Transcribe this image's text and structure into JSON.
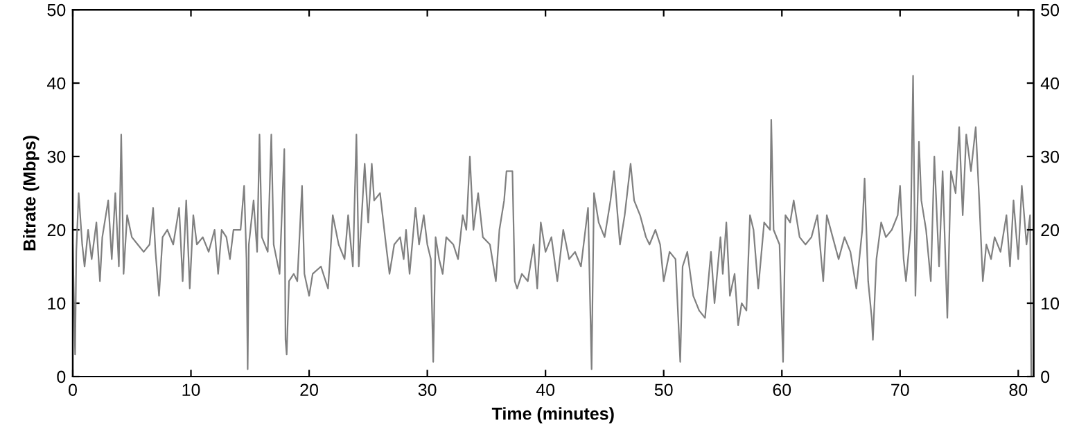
{
  "chart_data": {
    "type": "line",
    "xlabel": "Time (minutes)",
    "ylabel": "Bitrate (Mbps)",
    "xlim": [
      0,
      81.3
    ],
    "xticks": [
      0,
      10,
      20,
      30,
      40,
      50,
      60,
      70,
      80
    ],
    "ylim": [
      0,
      50
    ],
    "yticks": [
      0,
      10,
      20,
      30,
      40,
      50
    ],
    "y2lim": [
      0,
      50
    ],
    "y2ticks": [
      0,
      10,
      20,
      30,
      40,
      50
    ],
    "marker": "none",
    "line_style": "solid",
    "series": [
      {
        "color": "#808080",
        "x": [
          0,
          0.2,
          0.3,
          0.5,
          0.8,
          1,
          1.3,
          1.6,
          2,
          2.3,
          2.5,
          3,
          3.3,
          3.6,
          3.9,
          4.1,
          4.3,
          4.6,
          5,
          5.5,
          6,
          6.5,
          6.8,
          7,
          7.3,
          7.6,
          8,
          8.5,
          9,
          9.3,
          9.6,
          9.9,
          10.2,
          10.5,
          11,
          11.5,
          12,
          12.3,
          12.6,
          13,
          13.3,
          13.6,
          14.2,
          14.5,
          14.7,
          14.8,
          14.9,
          15.3,
          15.6,
          15.8,
          16,
          16.5,
          16.8,
          17,
          17.5,
          17.9,
          18,
          18.1,
          18.3,
          18.7,
          19,
          19.4,
          19.6,
          20,
          20.3,
          21,
          21.6,
          22,
          22.5,
          23,
          23.3,
          23.7,
          24,
          24.2,
          24.7,
          25,
          25.3,
          25.5,
          26,
          26.5,
          26.8,
          27.2,
          27.7,
          28,
          28.2,
          28.5,
          29,
          29.3,
          29.7,
          30,
          30.3,
          30.5,
          30.7,
          31,
          31.3,
          31.6,
          32.2,
          32.6,
          33,
          33.3,
          33.6,
          33.9,
          34.3,
          34.7,
          35.3,
          35.8,
          36.1,
          36.5,
          36.7,
          37.2,
          37.4,
          37.6,
          38,
          38.5,
          39,
          39.3,
          39.6,
          40,
          40.5,
          41,
          41.5,
          42,
          42.5,
          43,
          43.6,
          43.9,
          44.1,
          44.5,
          45,
          45.5,
          45.8,
          46.3,
          46.7,
          47.2,
          47.5,
          48,
          48.5,
          48.8,
          49.3,
          49.7,
          50,
          50.5,
          51,
          51.4,
          51.6,
          52,
          52.5,
          53,
          53.5,
          54,
          54.3,
          54.8,
          55,
          55.3,
          55.6,
          56,
          56.3,
          56.6,
          57,
          57.3,
          57.6,
          58,
          58.5,
          59,
          59.1,
          59.3,
          59.8,
          60.1,
          60.3,
          60.7,
          61,
          61.5,
          62,
          62.5,
          63,
          63.5,
          63.8,
          64.3,
          64.8,
          65.3,
          65.8,
          66.3,
          66.8,
          67,
          67.3,
          67.6,
          67.7,
          68,
          68.4,
          68.8,
          69.3,
          69.8,
          70,
          70.3,
          70.5,
          70.9,
          71.1,
          71.3,
          71.6,
          71.8,
          72.2,
          72.6,
          72.9,
          73.3,
          73.6,
          74,
          74.3,
          74.7,
          75,
          75.3,
          75.6,
          76,
          76.4,
          76.7,
          77,
          77.3,
          77.7,
          78,
          78.5,
          79,
          79.3,
          79.6,
          80,
          80.3,
          80.7,
          81,
          81.1
        ],
        "values": [
          18,
          3,
          17,
          25,
          18,
          15,
          20,
          16,
          21,
          13,
          19,
          24,
          16,
          25,
          15,
          33,
          14,
          22,
          19,
          18,
          17,
          18,
          23,
          17,
          11,
          19,
          20,
          18,
          23,
          13,
          24,
          12,
          22,
          18,
          19,
          17,
          20,
          14,
          20,
          19,
          16,
          20,
          20,
          26,
          16,
          1,
          18,
          24,
          17,
          33,
          19,
          17,
          33,
          18,
          14,
          31,
          5,
          3,
          13,
          14,
          13,
          26,
          14,
          11,
          14,
          15,
          12,
          22,
          18,
          16,
          22,
          15,
          33,
          15,
          29,
          21,
          29,
          24,
          25,
          18,
          14,
          18,
          19,
          16,
          20,
          14,
          23,
          18,
          22,
          18,
          16,
          2,
          19,
          16,
          14,
          19,
          18,
          16,
          22,
          20,
          30,
          20,
          25,
          19,
          18,
          13,
          20,
          24,
          28,
          28,
          13,
          12,
          14,
          13,
          18,
          12,
          21,
          17,
          19,
          13,
          20,
          16,
          17,
          15,
          23,
          1,
          25,
          21,
          19,
          24,
          28,
          18,
          22,
          29,
          24,
          22,
          19,
          18,
          20,
          18,
          13,
          17,
          16,
          2,
          15,
          17,
          11,
          9,
          8,
          17,
          10,
          19,
          14,
          21,
          11,
          14,
          7,
          10,
          9,
          22,
          20,
          12,
          21,
          20,
          35,
          20,
          18,
          2,
          22,
          21,
          24,
          19,
          18,
          19,
          22,
          13,
          22,
          19,
          16,
          19,
          17,
          12,
          20,
          27,
          13,
          8,
          5,
          16,
          21,
          19,
          20,
          22,
          26,
          16,
          13,
          20,
          41,
          11,
          32,
          24,
          20,
          13,
          30,
          15,
          28,
          8,
          28,
          25,
          34,
          22,
          33,
          28,
          34,
          24,
          13,
          18,
          16,
          19,
          17,
          22,
          15,
          24,
          16,
          26,
          18,
          22,
          0
        ]
      }
    ]
  }
}
